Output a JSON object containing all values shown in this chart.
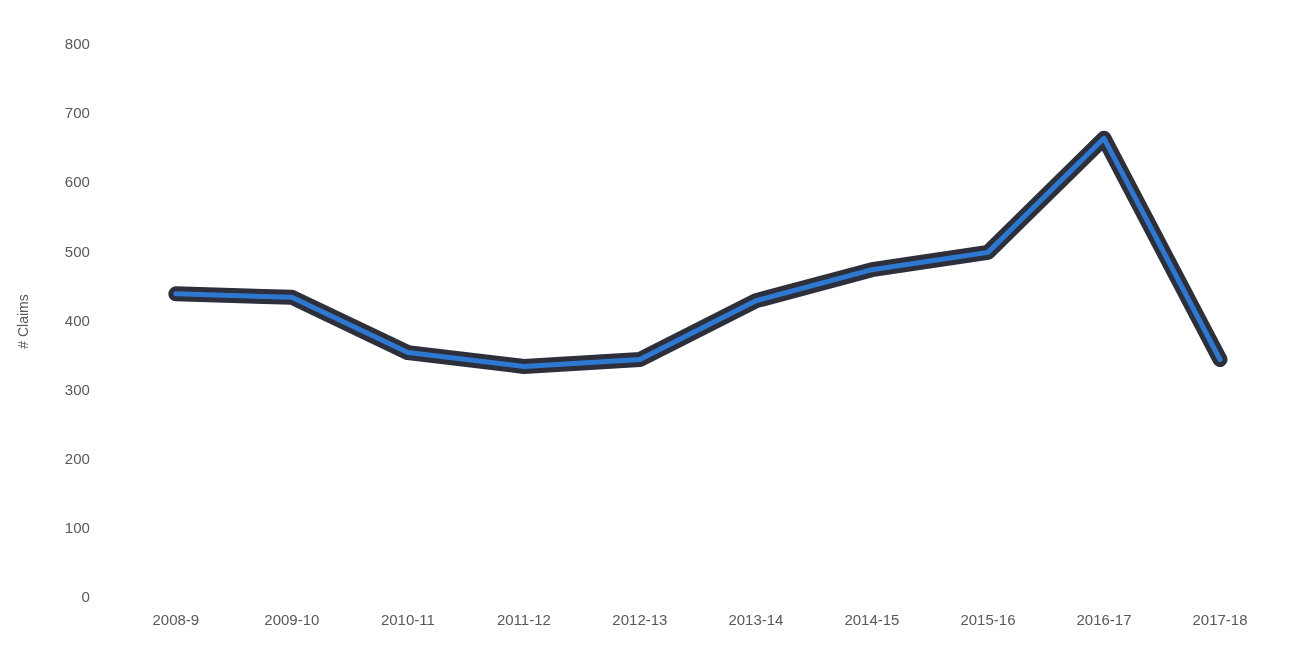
{
  "chart_data": {
    "type": "line",
    "ylabel": "# Claims",
    "categories": [
      "2008-9",
      "2009-10",
      "2010-11",
      "2011-12",
      "2012-13",
      "2013-14",
      "2014-15",
      "2015-16",
      "2016-17",
      "2017-18"
    ],
    "series": [
      {
        "color": "#2e78d2",
        "values": [
          440,
          435,
          355,
          335,
          345,
          430,
          475,
          500,
          665,
          345
        ]
      }
    ],
    "ylim": [
      0,
      800
    ],
    "yticks": [
      0,
      100,
      200,
      300,
      400,
      500,
      600,
      700,
      800
    ],
    "grid": false,
    "legend": false,
    "marker": "none",
    "line_style": "solid"
  }
}
